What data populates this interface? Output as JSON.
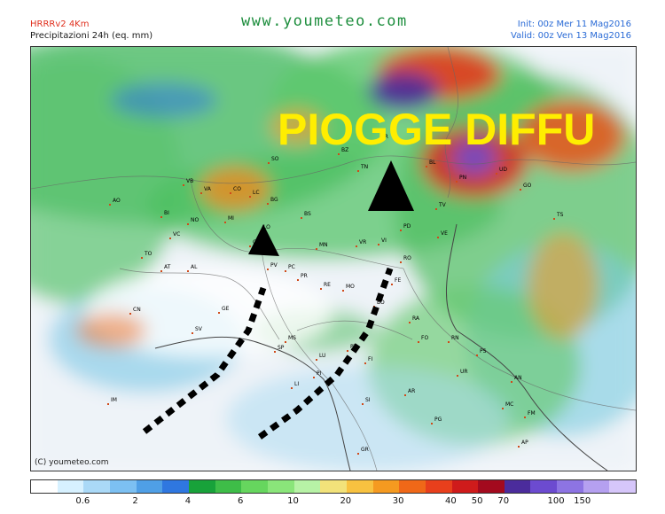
{
  "header": {
    "model": "HRRRv2  4Km",
    "variable": "Precipitazioni 24h (eq. mm)",
    "site": "www.youmeteo.com",
    "init": "Init: 00z Mer  11 Mag2016",
    "valid": "Valid: 00z Ven  13 Mag2016"
  },
  "map": {
    "overlay_text": "PIOGGE DIFFU",
    "copyright": "(C) youmeteo.com",
    "places": [
      "AO",
      "BI",
      "VB",
      "VA",
      "CO",
      "LC",
      "SO",
      "BG",
      "BS",
      "TN",
      "BL",
      "PN",
      "UD",
      "GO",
      "TS",
      "TO",
      "VC",
      "NO",
      "MI",
      "AT",
      "AL",
      "PV",
      "PC",
      "PR",
      "RE",
      "MO",
      "BO",
      "FE",
      "RO",
      "PD",
      "VE",
      "TV",
      "VI",
      "VR",
      "CN",
      "SV",
      "GE",
      "SP",
      "MS",
      "LU",
      "PT",
      "PI",
      "LI",
      "FI",
      "AR",
      "SI",
      "GR",
      "PG",
      "RA",
      "FO",
      "RN",
      "PS",
      "AN",
      "UR",
      "MC",
      "FM",
      "AP",
      "IM",
      "LO",
      "CR",
      "MN",
      "TR",
      "BZ"
    ],
    "arrow_count": 3,
    "colors": {
      "overlay": "#ffee00",
      "arrow": "#000000"
    }
  },
  "legend": {
    "colors": [
      "#ffffff",
      "#d7f1ff",
      "#aad9f7",
      "#7cc0f2",
      "#4f9fe6",
      "#2f77e0",
      "#18a23a",
      "#3ebd48",
      "#66d65e",
      "#8ae57a",
      "#b7f2a6",
      "#f2e27a",
      "#f8c240",
      "#f59a20",
      "#f06818",
      "#e83f1c",
      "#cf1b1b",
      "#a30a1e",
      "#4b2c9c",
      "#6c4bd0",
      "#8d74e3",
      "#b5a0f0",
      "#d6c6fa"
    ],
    "ticks": [
      "0.6",
      "2",
      "4",
      "6",
      "10",
      "20",
      "30",
      "40",
      "50",
      "70",
      "100",
      "150"
    ]
  }
}
